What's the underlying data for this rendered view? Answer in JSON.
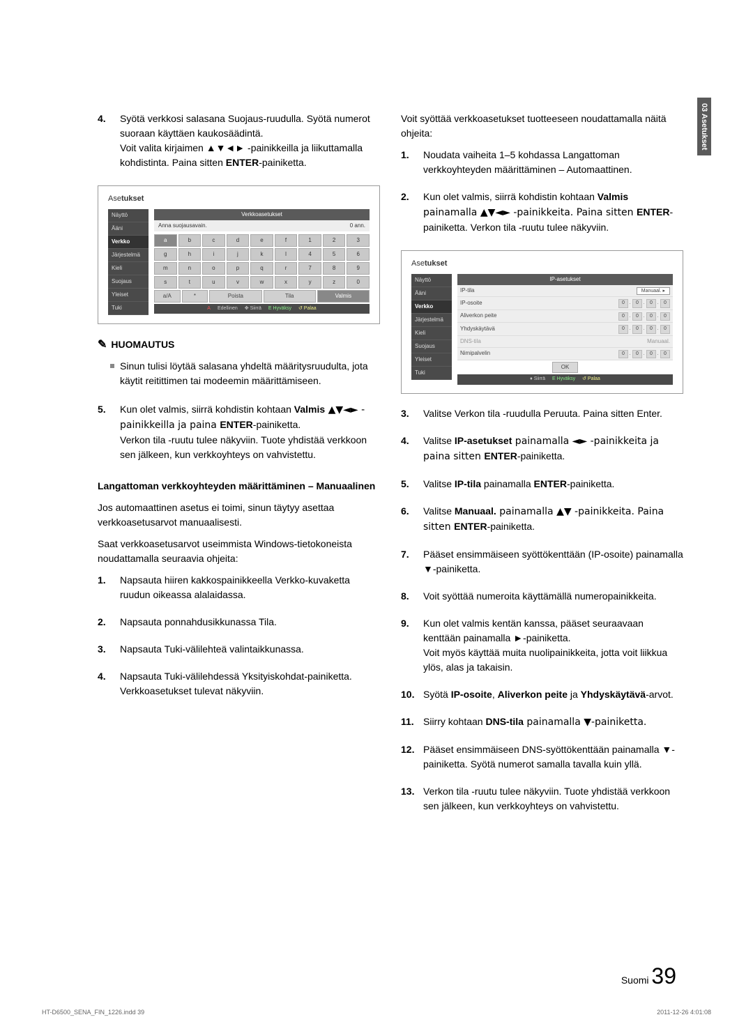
{
  "side_tab": "03   Asetukset",
  "left": {
    "step4": {
      "num": "4.",
      "text_a": "Syötä verkkosi salasana Suojaus-ruudulla. Syötä numerot suoraan käyttäen kaukosäädintä.",
      "text_b": "Voit valita kirjaimen ▲▼◄► -painikkeilla ja liikuttamalla kohdistinta. Paina sitten ",
      "enter": "ENTER",
      "text_c": "-painiketta."
    },
    "shot1": {
      "title1": "Ase",
      "title2": "tukset",
      "sidebar": [
        "Näyttö",
        "Ääni",
        "Verkko",
        "Järjestelmä",
        "Kieli",
        "Suojaus",
        "Yleiset",
        "Tuki"
      ],
      "active_idx": 2,
      "header": "Verkkoasetukset",
      "subhead_l": "Anna suojausavain.",
      "subhead_r": "0 ann.",
      "keys_row1": [
        "a",
        "b",
        "c",
        "d",
        "e",
        "f",
        "1",
        "2",
        "3"
      ],
      "keys_row2": [
        "g",
        "h",
        "i",
        "j",
        "k",
        "l",
        "4",
        "5",
        "6"
      ],
      "keys_row3": [
        "m",
        "n",
        "o",
        "p",
        "q",
        "r",
        "7",
        "8",
        "9"
      ],
      "keys_row4": [
        "s",
        "t",
        "u",
        "v",
        "w",
        "x",
        "y",
        "z",
        "0"
      ],
      "actions": [
        "a/A",
        "*",
        "Poista",
        "Tila",
        "Valmis"
      ],
      "hints": [
        [
          "red",
          "A"
        ],
        [
          "",
          "Edellinen"
        ],
        [
          "",
          "✥ Siirrä"
        ],
        [
          "grn",
          "E Hyväksy"
        ],
        [
          "ylw",
          "↺ Palaa"
        ]
      ]
    },
    "note_head": "HUOMAUTUS",
    "note_text": "Sinun tulisi löytää salasana yhdeltä määritysruudulta, jota käytit reitittimen tai modeemin määrittämiseen.",
    "step5": {
      "num": "5.",
      "line1_a": "Kun olet valmis, siirrä kohdistin kohtaan ",
      "valmis": "Valmis",
      "line1_b": " ▲▼◄► -painikkeilla ja paina ",
      "enter": "ENTER",
      "line1_c": "-painiketta.",
      "line2": "Verkon tila -ruutu tulee näkyviin. Tuote yhdistää verkkoon sen jälkeen, kun verkkoyhteys on vahvistettu."
    },
    "manual_head": "Langattoman verkkoyhteyden määrittäminen – Manuaalinen",
    "manual_p1": "Jos automaattinen asetus ei toimi, sinun täytyy asettaa verkkoasetusarvot manuaalisesti.",
    "manual_p2": "Saat verkkoasetusarvot useimmista Windows-tietokoneista noudattamalla seuraavia ohjeita:",
    "wsteps": [
      {
        "n": "1.",
        "t": "Napsauta hiiren kakkospainikkeella Verkko-kuvaketta ruudun oikeassa alalaidassa."
      },
      {
        "n": "2.",
        "t": "Napsauta ponnahdusikkunassa Tila."
      },
      {
        "n": "3.",
        "t": "Napsauta Tuki-välilehteä valintaikkunassa."
      },
      {
        "n": "4.",
        "t": "Napsauta Tuki-välilehdessä Yksityiskohdat-painiketta.",
        "t2": "Verkkoasetukset tulevat näkyviin."
      }
    ]
  },
  "right": {
    "intro": "Voit syöttää verkkoasetukset tuotteeseen noudattamalla näitä ohjeita:",
    "r1": {
      "n": "1.",
      "t": "Noudata vaiheita 1–5 kohdassa Langattoman verkkoyhteyden määrittäminen – Automaattinen."
    },
    "r2": {
      "n": "2.",
      "a": "Kun olet valmis, siirrä kohdistin kohtaan ",
      "valmis": "Valmis",
      "b": " painamalla ▲▼◄► -painikkeita. Paina sitten ",
      "enter": "ENTER",
      "c": "-painiketta. Verkon tila -ruutu tulee näkyviin."
    },
    "shot2": {
      "title1": "Ase",
      "title2": "tukset",
      "sidebar": [
        "Näyttö",
        "Ääni",
        "Verkko",
        "Järjestelmä",
        "Kieli",
        "Suojaus",
        "Yleiset",
        "Tuki"
      ],
      "active_idx": 2,
      "header": "IP-asetukset",
      "rows": [
        {
          "label": "IP-tila",
          "mode": "Manuaal.",
          "sel": true
        },
        {
          "label": "IP-osoite",
          "vals": [
            "0",
            "0",
            "0",
            "0"
          ]
        },
        {
          "label": "Aliverkon peite",
          "vals": [
            "0",
            "0",
            "0",
            "0"
          ]
        },
        {
          "label": "Yhdyskäytävä",
          "vals": [
            "0",
            "0",
            "0",
            "0"
          ]
        },
        {
          "label": "DNS-tila",
          "mode": "Manuaal.",
          "grey": true
        },
        {
          "label": "Nimipalvelin",
          "vals": [
            "0",
            "0",
            "0",
            "0"
          ]
        }
      ],
      "ok": "OK",
      "hints": [
        [
          "",
          "♦ Siirrä"
        ],
        [
          "grn",
          "E Hyväksy"
        ],
        [
          "ylw",
          "↺ Palaa"
        ]
      ]
    },
    "r3": {
      "n": "3.",
      "t": "Valitse Verkon tila -ruudulla Peruuta. Paina sitten Enter."
    },
    "r4": {
      "n": "4.",
      "a": "Valitse ",
      "b": "IP-asetukset",
      "c": " painamalla ◄► -painikkeita ja paina sitten ",
      "enter": "ENTER",
      "d": "-painiketta."
    },
    "r5": {
      "n": "5.",
      "a": "Valitse ",
      "b": "IP-tila",
      "c": " painamalla ",
      "enter": "ENTER",
      "d": "-painiketta."
    },
    "r6": {
      "n": "6.",
      "a": "Valitse ",
      "b": "Manuaal.",
      "c": " painamalla ▲▼ -painikkeita. Paina sitten ",
      "enter": "ENTER",
      "d": "-painiketta."
    },
    "r7": {
      "n": "7.",
      "t": "Pääset ensimmäiseen syöttökenttään (IP-osoite) painamalla ▼-painiketta."
    },
    "r8": {
      "n": "8.",
      "t": "Voit syöttää numeroita käyttämällä numeropainikkeita."
    },
    "r9": {
      "n": "9.",
      "t": "Kun olet valmis kentän kanssa, pääset seuraavaan kenttään painamalla ►-painiketta.",
      "t2": "Voit myös käyttää muita nuolipainikkeita, jotta voit liikkua ylös, alas ja takaisin."
    },
    "r10": {
      "n": "10.",
      "a": "Syötä ",
      "b": "IP-osoite",
      "c": ", ",
      "d": "Aliverkon peite",
      "e": " ja ",
      "f": "Yhdyskäytävä",
      "g": "-arvot."
    },
    "r11": {
      "n": "11.",
      "a": "Siirry kohtaan ",
      "b": "DNS-tila",
      "c": " painamalla ▼-painiketta."
    },
    "r12": {
      "n": "12.",
      "t": "Pääset ensimmäiseen DNS-syöttökenttään painamalla ▼-painiketta.  Syötä numerot samalla tavalla kuin yllä."
    },
    "r13": {
      "n": "13.",
      "t": "Verkon tila -ruutu tulee näkyviin. Tuote yhdistää verkkoon sen jälkeen, kun verkkoyhteys on vahvistettu."
    }
  },
  "page_label": "Suomi",
  "page_num": "39",
  "footer_l": "HT-D6500_SENA_FIN_1226.indd   39",
  "footer_r": "2011-12-26    4:01:08"
}
